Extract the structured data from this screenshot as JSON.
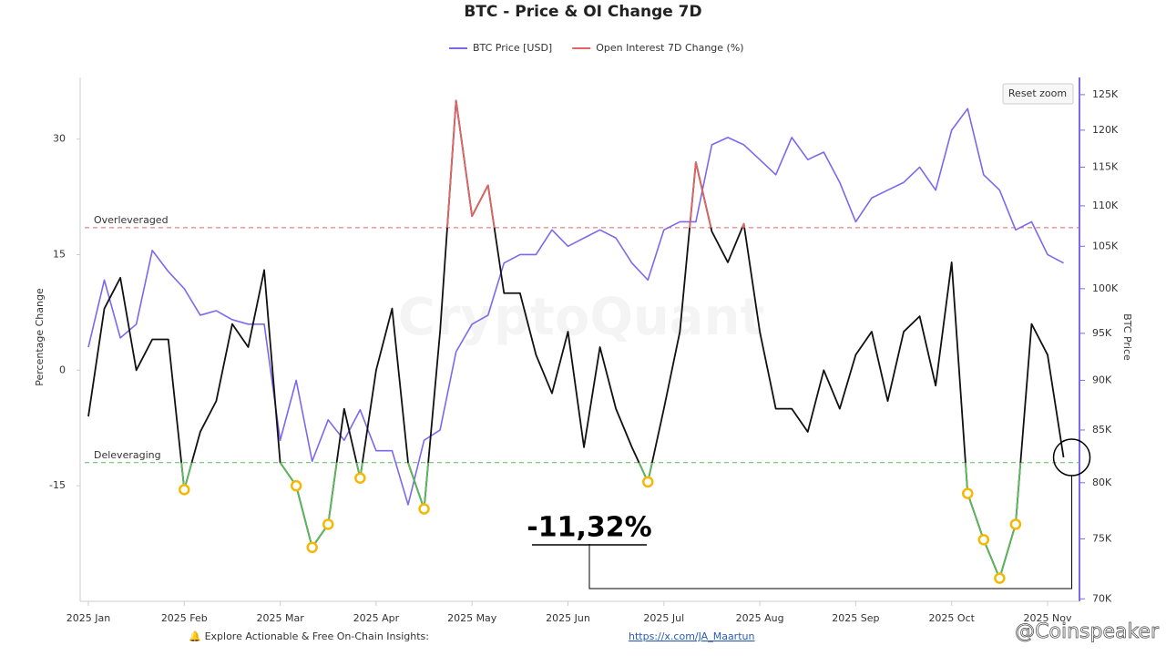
{
  "chart_data": {
    "type": "line",
    "title": "BTC - Price & OI Change 7D",
    "y_label": "Percentage Change",
    "y2_label": "BTC Price",
    "categories": [
      "2025 Jan",
      null,
      null,
      null,
      null,
      null,
      "2025 Feb",
      null,
      null,
      null,
      null,
      null,
      "2025 Mar",
      null,
      null,
      null,
      null,
      null,
      "2025 Apr",
      null,
      null,
      null,
      null,
      null,
      "2025 May",
      null,
      null,
      null,
      null,
      null,
      "2025 Jun",
      null,
      null,
      null,
      null,
      null,
      "2025 Jul",
      null,
      null,
      null,
      null,
      null,
      "2025 Aug",
      null,
      null,
      null,
      null,
      null,
      "2025 Sep",
      null,
      null,
      null,
      null,
      null,
      "2025 Oct",
      null,
      null,
      null,
      null,
      null,
      "2025 Nov",
      null
    ],
    "series": [
      {
        "name": "BTC Price [USD]",
        "color": "#7b68ee",
        "axis": "y2",
        "values": [
          93500,
          101000,
          94500,
          96000,
          104500,
          102000,
          100000,
          97000,
          97500,
          96500,
          96000,
          96000,
          84000,
          90000,
          82000,
          86000,
          84000,
          87000,
          83000,
          83000,
          78000,
          84000,
          85000,
          93000,
          96000,
          97000,
          103000,
          104000,
          104000,
          107000,
          105000,
          106000,
          107000,
          106000,
          103000,
          101000,
          107000,
          108000,
          108000,
          118000,
          119000,
          118000,
          116000,
          114000,
          119000,
          116000,
          117000,
          113000,
          108000,
          111000,
          112000,
          113000,
          115000,
          112000,
          120000,
          123000,
          114000,
          112000,
          107000,
          108000,
          104000,
          103000
        ]
      },
      {
        "name": "Open Interest 7D Change (%)",
        "color": "#e06666",
        "line_color": "#111111",
        "values": [
          -6,
          8,
          12,
          0,
          4,
          4,
          -15.5,
          -8,
          -4,
          6,
          3,
          13,
          -12,
          -15,
          -23,
          -20,
          -5,
          -14,
          0,
          8,
          -12,
          -18,
          5,
          35,
          20,
          24,
          10,
          10,
          2,
          -3,
          5,
          -10,
          3,
          -5,
          -10,
          -14.5,
          -5,
          5,
          27,
          18,
          14,
          19,
          5,
          -5,
          -5,
          -8,
          0,
          -5,
          2,
          5,
          -4,
          5,
          7,
          -2,
          14,
          -16,
          -22,
          -27,
          -20,
          6,
          2,
          -11.32
        ]
      }
    ],
    "ylim": [
      -30,
      38
    ],
    "yticks": [
      -15,
      0,
      15,
      30
    ],
    "y2lim": [
      69800,
      127500
    ],
    "y2_log": true,
    "y2ticks": [
      {
        "value": 70000,
        "label": "70K"
      },
      {
        "value": 75000,
        "label": "75K"
      },
      {
        "value": 80000,
        "label": "80K"
      },
      {
        "value": 85000,
        "label": "85K"
      },
      {
        "value": 90000,
        "label": "90K"
      },
      {
        "value": 95000,
        "label": "95K"
      },
      {
        "value": 100000,
        "label": "100K"
      },
      {
        "value": 105000,
        "label": "105K"
      },
      {
        "value": 110000,
        "label": "110K"
      },
      {
        "value": 115000,
        "label": "115K"
      },
      {
        "value": 120000,
        "label": "120K"
      },
      {
        "value": 125000,
        "label": "125K"
      }
    ],
    "reference_lines": [
      {
        "label": "Overleveraged",
        "value": 18.5,
        "color": "#e06666"
      },
      {
        "label": "Deleveraging",
        "value": -12,
        "color": "#5cb85c"
      }
    ],
    "marker_color": "#f5b800",
    "annotations": [
      {
        "text": "-11,32%"
      }
    ],
    "watermark": "CryptoQuant",
    "reset_button": "Reset zoom"
  },
  "footer": {
    "text": "🔔 Explore Actionable & Free On-Chain Insights:",
    "link": "https://x.com/JA_Maartun",
    "source": "@Coinspeaker"
  }
}
